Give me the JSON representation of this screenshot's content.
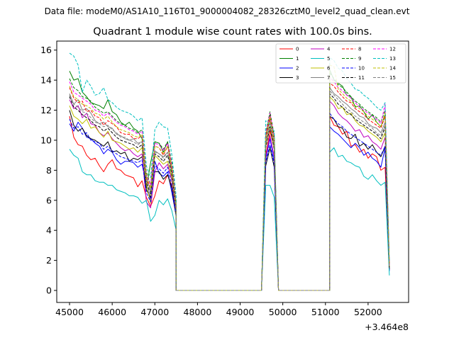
{
  "chart_data": {
    "type": "line",
    "suptitle": "Data file: modeM0/AS1A10_116T01_9000004082_28326cztM0_level2_quad_clean.evt",
    "title": "Quadrant 1 module wise count rates with 100.0s bins.",
    "xlabel": "",
    "ylabel": "",
    "x_offset_label": "+3.464e8",
    "xlim": [
      44700,
      52950
    ],
    "ylim": [
      -0.8,
      16.6
    ],
    "xticks": [
      45000,
      46000,
      47000,
      48000,
      49000,
      50000,
      51000,
      52000
    ],
    "yticks": [
      0,
      2,
      4,
      6,
      8,
      10,
      12,
      14,
      16
    ],
    "segments": [
      {
        "start": 45000,
        "step": 100,
        "count": 26
      },
      {
        "start": 47500,
        "step": 100,
        "count": 21
      },
      {
        "start": 49600,
        "step": 100,
        "count": 3
      },
      {
        "start": 49900,
        "step": 100,
        "count": 13
      },
      {
        "start": 51100,
        "step": 100,
        "count": 15
      }
    ],
    "series": [
      {
        "name": "0",
        "color": "#ff0000",
        "dash": false,
        "seg1": [
          11.6,
          10.2,
          9.7,
          9.6,
          9.0,
          8.7,
          8.8,
          8.3,
          7.9,
          8.4,
          8.7,
          8.1,
          8.0,
          7.7,
          7.6,
          7.5,
          6.9,
          7.3,
          6.2,
          5.6,
          6.3,
          7.3,
          7.1,
          7.7,
          6.9,
          5.5
        ],
        "seg3": [
          9.0,
          10.6,
          9.5
        ],
        "seg5": [
          11.6,
          11.0,
          10.9,
          10.4,
          10.6,
          9.6,
          9.7,
          9.2,
          9.4,
          8.8,
          9.1,
          8.9,
          8.0,
          8.2,
          1.5
        ]
      },
      {
        "name": "1",
        "color": "#008000",
        "dash": false,
        "seg1": [
          14.6,
          14.0,
          14.1,
          13.2,
          12.9,
          12.5,
          12.4,
          12.3,
          12.1,
          12.7,
          11.9,
          11.7,
          11.2,
          11.0,
          11.2,
          10.8,
          10.6,
          10.1,
          6.8,
          8.5,
          9.9,
          9.8,
          9.2,
          9.9,
          7.7,
          5.2
        ],
        "seg3": [
          10.3,
          11.7,
          10.1
        ],
        "seg5": [
          14.7,
          14.0,
          13.8,
          13.6,
          13.0,
          12.9,
          12.2,
          12.3,
          11.9,
          11.4,
          11.7,
          11.2,
          10.9,
          11.7,
          1.7
        ]
      },
      {
        "name": "2",
        "color": "#0000ff",
        "dash": false,
        "seg1": [
          11.1,
          10.6,
          11.2,
          10.8,
          10.2,
          10.1,
          9.8,
          9.6,
          9.1,
          9.4,
          9.2,
          8.7,
          8.4,
          8.6,
          8.6,
          8.5,
          8.2,
          8.4,
          7.1,
          6.0,
          8.6,
          7.8,
          7.6,
          7.9,
          6.5,
          5.0
        ],
        "seg3": [
          8.7,
          10.1,
          8.6
        ],
        "seg5": [
          10.9,
          10.6,
          10.4,
          10.1,
          9.8,
          9.5,
          9.8,
          9.5,
          9.0,
          9.2,
          8.8,
          8.6,
          8.2,
          9.5,
          1.3
        ]
      },
      {
        "name": "3",
        "color": "#000000",
        "dash": false,
        "seg1": [
          12.0,
          11.0,
          10.6,
          10.8,
          10.3,
          10.1,
          10.0,
          9.8,
          9.6,
          9.9,
          9.2,
          9.3,
          9.1,
          9.2,
          8.6,
          8.8,
          8.7,
          8.9,
          6.7,
          6.2,
          7.9,
          7.9,
          7.4,
          7.7,
          6.8,
          4.9
        ],
        "seg3": [
          8.3,
          9.5,
          8.2
        ],
        "seg5": [
          11.6,
          11.4,
          10.9,
          10.8,
          10.2,
          10.1,
          10.4,
          9.6,
          9.8,
          9.4,
          9.7,
          9.2,
          8.9,
          9.6,
          1.4
        ]
      },
      {
        "name": "4",
        "color": "#bf00bf",
        "dash": false,
        "seg1": [
          12.7,
          12.1,
          12.3,
          11.5,
          11.8,
          11.1,
          11.0,
          10.5,
          10.3,
          10.5,
          10.1,
          9.8,
          9.5,
          9.3,
          9.4,
          9.1,
          8.9,
          9.1,
          5.9,
          5.5,
          7.9,
          8.5,
          8.1,
          8.4,
          7.3,
          5.2
        ],
        "seg3": [
          8.9,
          10.3,
          8.9
        ],
        "seg5": [
          12.6,
          12.3,
          11.8,
          11.5,
          11.3,
          11.0,
          10.6,
          10.7,
          10.2,
          10.3,
          9.9,
          9.7,
          9.4,
          10.2,
          1.6
        ]
      },
      {
        "name": "5",
        "color": "#00bfbf",
        "dash": false,
        "seg1": [
          9.4,
          9.0,
          8.8,
          7.9,
          7.7,
          7.7,
          7.3,
          7.2,
          7.2,
          7.0,
          7.0,
          6.7,
          6.6,
          6.5,
          6.3,
          6.3,
          6.2,
          5.8,
          6.0,
          4.6,
          5.0,
          6.0,
          5.7,
          6.1,
          5.3,
          4.0
        ],
        "seg3": [
          7.0,
          7.0,
          6.2
        ],
        "seg5": [
          9.2,
          9.5,
          8.9,
          9.0,
          8.6,
          8.5,
          8.3,
          8.2,
          7.6,
          7.4,
          7.7,
          7.3,
          7.0,
          7.2,
          1.0
        ]
      },
      {
        "name": "6",
        "color": "#bfbf00",
        "dash": false,
        "seg1": [
          12.3,
          11.6,
          11.4,
          11.1,
          11.4,
          10.8,
          10.9,
          10.5,
          10.2,
          10.6,
          10.0,
          9.9,
          9.8,
          9.6,
          9.4,
          9.5,
          9.2,
          9.5,
          7.1,
          5.8,
          9.0,
          8.7,
          8.4,
          8.6,
          7.5,
          5.4
        ],
        "seg3": [
          9.6,
          10.9,
          9.4
        ],
        "seg5": [
          12.9,
          12.6,
          12.1,
          12.2,
          11.7,
          11.8,
          11.3,
          11.0,
          10.9,
          10.6,
          10.4,
          10.2,
          9.9,
          10.5,
          1.5
        ]
      },
      {
        "name": "7",
        "color": "#808080",
        "dash": false,
        "seg1": [
          13.1,
          12.4,
          12.7,
          12.0,
          12.1,
          11.8,
          11.3,
          11.1,
          11.2,
          10.9,
          10.8,
          10.4,
          10.3,
          10.1,
          10.0,
          10.1,
          9.8,
          9.9,
          7.6,
          6.6,
          9.3,
          9.1,
          8.9,
          9.2,
          8.0,
          5.7
        ],
        "seg3": [
          9.9,
          11.3,
          9.7
        ],
        "seg5": [
          13.5,
          13.1,
          12.9,
          12.6,
          12.4,
          12.1,
          11.9,
          11.6,
          11.5,
          11.1,
          10.9,
          10.8,
          10.5,
          11.2,
          1.6
        ]
      },
      {
        "name": "8",
        "color": "#ff0000",
        "dash": true,
        "seg1": [
          13.5,
          12.8,
          12.5,
          12.6,
          11.9,
          12.0,
          11.6,
          11.5,
          11.0,
          11.3,
          11.1,
          10.9,
          10.5,
          10.4,
          10.4,
          10.1,
          10.1,
          10.3,
          7.4,
          6.8,
          9.6,
          9.5,
          9.0,
          9.6,
          8.1,
          5.8
        ],
        "seg3": [
          10.1,
          11.5,
          9.9
        ],
        "seg5": [
          13.8,
          13.6,
          13.2,
          12.9,
          12.6,
          12.5,
          12.1,
          11.9,
          11.7,
          11.4,
          11.2,
          11.0,
          10.8,
          11.6,
          1.7
        ]
      },
      {
        "name": "9",
        "color": "#008000",
        "dash": true,
        "seg1": [
          14.1,
          13.5,
          13.3,
          12.9,
          12.8,
          12.6,
          12.2,
          12.0,
          11.8,
          11.9,
          11.6,
          11.3,
          11.1,
          11.0,
          10.8,
          10.7,
          10.5,
          10.7,
          7.9,
          7.0,
          9.9,
          9.8,
          9.4,
          9.9,
          8.5,
          6.0
        ],
        "seg3": [
          10.5,
          11.9,
          10.3
        ],
        "seg5": [
          14.5,
          14.1,
          13.7,
          13.5,
          13.2,
          12.9,
          12.6,
          12.4,
          12.1,
          11.9,
          11.7,
          11.5,
          11.2,
          12.0,
          1.7
        ]
      },
      {
        "name": "10",
        "color": "#0000ff",
        "dash": true,
        "seg1": [
          11.4,
          10.8,
          10.9,
          10.4,
          10.5,
          10.0,
          9.9,
          9.8,
          9.4,
          9.6,
          9.3,
          9.1,
          8.9,
          8.8,
          8.7,
          8.6,
          8.5,
          8.7,
          6.5,
          5.9,
          8.3,
          8.1,
          7.8,
          8.2,
          7.0,
          5.0
        ],
        "seg3": [
          8.5,
          9.7,
          8.4
        ],
        "seg5": [
          11.8,
          11.4,
          11.1,
          10.9,
          10.6,
          10.4,
          10.2,
          10.0,
          9.8,
          9.6,
          9.4,
          9.2,
          9.0,
          9.6,
          1.4
        ]
      },
      {
        "name": "11",
        "color": "#000000",
        "dash": true,
        "seg1": [
          12.9,
          12.2,
          12.0,
          11.7,
          11.5,
          11.3,
          11.0,
          10.9,
          10.6,
          10.8,
          10.5,
          10.2,
          10.0,
          9.9,
          9.8,
          9.7,
          9.5,
          9.7,
          7.2,
          6.4,
          9.1,
          8.9,
          8.6,
          9.0,
          7.7,
          5.5
        ],
        "seg3": [
          9.5,
          10.9,
          9.4
        ],
        "seg5": [
          13.1,
          12.8,
          12.4,
          12.2,
          11.9,
          11.7,
          11.4,
          11.2,
          11.0,
          10.8,
          10.6,
          10.4,
          10.1,
          10.9,
          1.5
        ]
      },
      {
        "name": "12",
        "color": "#ff00ff",
        "dash": true,
        "seg1": [
          13.9,
          13.2,
          13.0,
          12.8,
          12.6,
          12.4,
          12.0,
          11.9,
          11.6,
          11.8,
          11.5,
          11.2,
          11.0,
          10.9,
          10.7,
          10.6,
          10.4,
          10.6,
          7.7,
          7.0,
          9.8,
          9.7,
          9.3,
          9.8,
          8.3,
          5.9
        ],
        "seg3": [
          10.4,
          11.8,
          10.2
        ],
        "seg5": [
          14.2,
          13.9,
          13.5,
          13.3,
          13.0,
          12.8,
          12.5,
          12.2,
          12.0,
          11.8,
          11.6,
          11.4,
          11.1,
          12.4,
          1.7
        ]
      },
      {
        "name": "13",
        "color": "#00bfbf",
        "dash": true,
        "seg1": [
          15.8,
          15.6,
          15.0,
          13.2,
          14.0,
          13.6,
          13.0,
          13.1,
          13.5,
          12.7,
          12.5,
          12.2,
          12.0,
          11.9,
          11.8,
          11.6,
          11.3,
          11.5,
          8.3,
          7.5,
          10.7,
          11.2,
          10.9,
          10.8,
          9.0,
          6.3
        ],
        "seg3": [
          11.3,
          11.0,
          10.6
        ],
        "seg5": [
          15.5,
          15.3,
          14.8,
          14.6,
          14.1,
          13.8,
          13.4,
          13.3,
          13.0,
          12.8,
          12.5,
          12.2,
          12.0,
          12.5,
          1.9
        ]
      },
      {
        "name": "14",
        "color": "#bfbf00",
        "dash": true,
        "seg1": [
          13.6,
          12.9,
          12.7,
          12.4,
          12.3,
          12.1,
          11.8,
          11.7,
          11.4,
          11.6,
          11.2,
          10.9,
          10.7,
          10.6,
          10.5,
          10.3,
          10.2,
          10.4,
          7.6,
          6.8,
          9.6,
          9.5,
          9.1,
          9.6,
          8.2,
          5.8
        ],
        "seg3": [
          10.2,
          11.6,
          10.0
        ],
        "seg5": [
          15.0,
          14.9,
          13.4,
          13.1,
          12.8,
          12.6,
          12.3,
          12.1,
          11.9,
          11.6,
          11.4,
          11.2,
          10.9,
          11.8,
          1.6
        ]
      },
      {
        "name": "15",
        "color": "#808080",
        "dash": true,
        "seg1": [
          13.0,
          12.4,
          12.2,
          11.9,
          11.8,
          11.5,
          11.2,
          11.1,
          10.9,
          11.0,
          10.7,
          10.5,
          10.2,
          10.2,
          10.0,
          9.9,
          9.7,
          9.9,
          7.3,
          6.5,
          9.2,
          9.1,
          8.8,
          9.2,
          7.8,
          5.6
        ],
        "seg3": [
          9.7,
          11.1,
          9.6
        ],
        "seg5": [
          13.3,
          13.0,
          12.7,
          12.4,
          12.1,
          11.9,
          11.6,
          11.4,
          11.2,
          11.0,
          10.8,
          10.5,
          10.3,
          11.0,
          1.5
        ]
      }
    ]
  }
}
